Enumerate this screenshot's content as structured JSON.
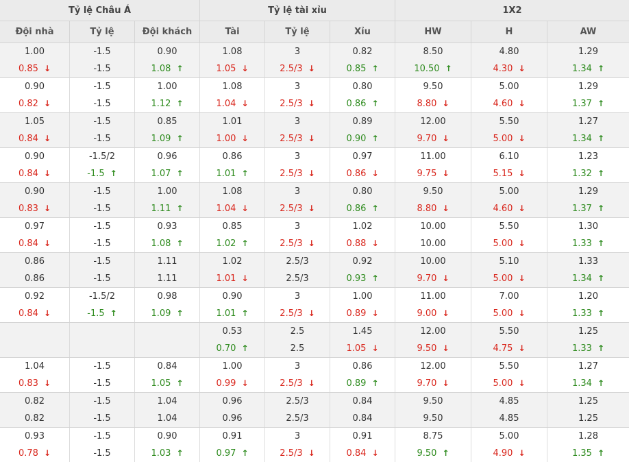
{
  "header": {
    "groups": [
      "Tỷ lệ Châu Á",
      "Tỷ lệ tài xỉu",
      "1X2"
    ],
    "columns": [
      "Đội nhà",
      "Tỷ lệ",
      "Đội khách",
      "Tài",
      "Tỷ lệ",
      "Xỉu",
      "HW",
      "H",
      "AW"
    ]
  },
  "rows": [
    [
      [
        "1.00",
        "0.85",
        "d"
      ],
      [
        "-1.5",
        "-1.5",
        ""
      ],
      [
        "0.90",
        "1.08",
        "u"
      ],
      [
        "1.08",
        "1.05",
        "d"
      ],
      [
        "3",
        "2.5/3",
        "d"
      ],
      [
        "0.82",
        "0.85",
        "u"
      ],
      [
        "8.50",
        "10.50",
        "u"
      ],
      [
        "4.80",
        "4.30",
        "d"
      ],
      [
        "1.29",
        "1.34",
        "u"
      ]
    ],
    [
      [
        "0.90",
        "0.82",
        "d"
      ],
      [
        "-1.5",
        "-1.5",
        ""
      ],
      [
        "1.00",
        "1.12",
        "u"
      ],
      [
        "1.08",
        "1.04",
        "d"
      ],
      [
        "3",
        "2.5/3",
        "d"
      ],
      [
        "0.80",
        "0.86",
        "u"
      ],
      [
        "9.50",
        "8.80",
        "d"
      ],
      [
        "5.00",
        "4.60",
        "d"
      ],
      [
        "1.29",
        "1.37",
        "u"
      ]
    ],
    [
      [
        "1.05",
        "0.84",
        "d"
      ],
      [
        "-1.5",
        "-1.5",
        ""
      ],
      [
        "0.85",
        "1.09",
        "u"
      ],
      [
        "1.01",
        "1.00",
        "d"
      ],
      [
        "3",
        "2.5/3",
        "d"
      ],
      [
        "0.89",
        "0.90",
        "u"
      ],
      [
        "12.00",
        "9.70",
        "d"
      ],
      [
        "5.50",
        "5.00",
        "d"
      ],
      [
        "1.27",
        "1.34",
        "u"
      ]
    ],
    [
      [
        "0.90",
        "0.84",
        "d"
      ],
      [
        "-1.5/2",
        "-1.5",
        "u"
      ],
      [
        "0.96",
        "1.07",
        "u"
      ],
      [
        "0.86",
        "1.01",
        "u"
      ],
      [
        "3",
        "2.5/3",
        "d"
      ],
      [
        "0.97",
        "0.86",
        "d"
      ],
      [
        "11.00",
        "9.75",
        "d"
      ],
      [
        "6.10",
        "5.15",
        "d"
      ],
      [
        "1.23",
        "1.32",
        "u"
      ]
    ],
    [
      [
        "0.90",
        "0.83",
        "d"
      ],
      [
        "-1.5",
        "-1.5",
        ""
      ],
      [
        "1.00",
        "1.11",
        "u"
      ],
      [
        "1.08",
        "1.04",
        "d"
      ],
      [
        "3",
        "2.5/3",
        "d"
      ],
      [
        "0.80",
        "0.86",
        "u"
      ],
      [
        "9.50",
        "8.80",
        "d"
      ],
      [
        "5.00",
        "4.60",
        "d"
      ],
      [
        "1.29",
        "1.37",
        "u"
      ]
    ],
    [
      [
        "0.97",
        "0.84",
        "d"
      ],
      [
        "-1.5",
        "-1.5",
        ""
      ],
      [
        "0.93",
        "1.08",
        "u"
      ],
      [
        "0.85",
        "1.02",
        "u"
      ],
      [
        "3",
        "2.5/3",
        "d"
      ],
      [
        "1.02",
        "0.88",
        "d"
      ],
      [
        "10.00",
        "10.00",
        ""
      ],
      [
        "5.50",
        "5.00",
        "d"
      ],
      [
        "1.30",
        "1.33",
        "u"
      ]
    ],
    [
      [
        "0.86",
        "0.86",
        ""
      ],
      [
        "-1.5",
        "-1.5",
        ""
      ],
      [
        "1.11",
        "1.11",
        ""
      ],
      [
        "1.02",
        "1.01",
        "d"
      ],
      [
        "2.5/3",
        "2.5/3",
        ""
      ],
      [
        "0.92",
        "0.93",
        "u"
      ],
      [
        "10.00",
        "9.70",
        "d"
      ],
      [
        "5.10",
        "5.00",
        "d"
      ],
      [
        "1.33",
        "1.34",
        "u"
      ]
    ],
    [
      [
        "0.92",
        "0.84",
        "d"
      ],
      [
        "-1.5/2",
        "-1.5",
        "u"
      ],
      [
        "0.98",
        "1.09",
        "u"
      ],
      [
        "0.90",
        "1.01",
        "u"
      ],
      [
        "3",
        "2.5/3",
        "d"
      ],
      [
        "1.00",
        "0.89",
        "d"
      ],
      [
        "11.00",
        "9.00",
        "d"
      ],
      [
        "7.00",
        "5.00",
        "d"
      ],
      [
        "1.20",
        "1.33",
        "u"
      ]
    ],
    [
      [
        "",
        "",
        ""
      ],
      [
        "",
        "",
        ""
      ],
      [
        "",
        "",
        ""
      ],
      [
        "0.53",
        "0.70",
        "u"
      ],
      [
        "2.5",
        "2.5",
        ""
      ],
      [
        "1.45",
        "1.05",
        "d"
      ],
      [
        "12.00",
        "9.50",
        "d"
      ],
      [
        "5.50",
        "4.75",
        "d"
      ],
      [
        "1.25",
        "1.33",
        "u"
      ]
    ],
    [
      [
        "1.04",
        "0.83",
        "d"
      ],
      [
        "-1.5",
        "-1.5",
        ""
      ],
      [
        "0.84",
        "1.05",
        "u"
      ],
      [
        "1.00",
        "0.99",
        "d"
      ],
      [
        "3",
        "2.5/3",
        "d"
      ],
      [
        "0.86",
        "0.89",
        "u"
      ],
      [
        "12.00",
        "9.70",
        "d"
      ],
      [
        "5.50",
        "5.00",
        "d"
      ],
      [
        "1.27",
        "1.34",
        "u"
      ]
    ],
    [
      [
        "0.82",
        "0.82",
        ""
      ],
      [
        "-1.5",
        "-1.5",
        ""
      ],
      [
        "1.04",
        "1.04",
        ""
      ],
      [
        "0.96",
        "0.96",
        ""
      ],
      [
        "2.5/3",
        "2.5/3",
        ""
      ],
      [
        "0.84",
        "0.84",
        ""
      ],
      [
        "9.50",
        "9.50",
        ""
      ],
      [
        "4.85",
        "4.85",
        ""
      ],
      [
        "1.25",
        "1.25",
        ""
      ]
    ],
    [
      [
        "0.93",
        "0.78",
        "d"
      ],
      [
        "-1.5",
        "-1.5",
        ""
      ],
      [
        "0.90",
        "1.03",
        "u"
      ],
      [
        "0.91",
        "0.97",
        "u"
      ],
      [
        "3",
        "2.5/3",
        "d"
      ],
      [
        "0.91",
        "0.84",
        "d"
      ],
      [
        "8.75",
        "9.50",
        "u"
      ],
      [
        "5.00",
        "4.90",
        "d"
      ],
      [
        "1.28",
        "1.35",
        "u"
      ]
    ]
  ],
  "icons": {
    "up": "arrow-up-icon",
    "down": "arrow-down-icon"
  },
  "colors": {
    "up": "#2e8b1e",
    "down": "#d9261c",
    "header_bg": "#ebebeb",
    "alt_row_bg": "#f2f2f2"
  }
}
